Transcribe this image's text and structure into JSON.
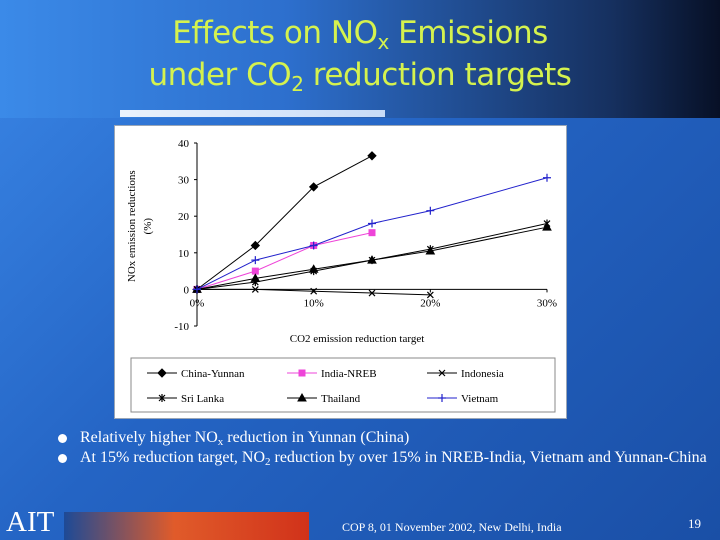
{
  "slide": {
    "title": {
      "line1_a": "Effects on NO",
      "line1_sub": "x",
      "line1_b": " Emissions",
      "line2_a": "under CO",
      "line2_sub": "2",
      "line2_b": " reduction targets"
    },
    "bullets": [
      {
        "a": "Relatively higher NO",
        "sub": "x",
        "b": " reduction in Yunnan (China)"
      },
      {
        "a": "At 15% reduction target, NO",
        "sub": "2",
        "b": " reduction by over 15% in NREB-India, Vietnam and Yunnan-China"
      }
    ],
    "logo_text": "AIT",
    "footer": "COP 8, 01 November 2002, New Delhi, India",
    "page_number": "19"
  },
  "chart_data": {
    "type": "line",
    "ylabel_line1": "NOx emission reductions",
    "ylabel_line2": "(%)",
    "xlabel": "CO2 emission reduction target",
    "ylim": [
      -10,
      40
    ],
    "yticks": [
      -10,
      0,
      10,
      20,
      30,
      40
    ],
    "xlim": [
      0,
      30
    ],
    "xticks": [
      {
        "value": 0,
        "label": "0%"
      },
      {
        "value": 10,
        "label": "10%"
      },
      {
        "value": 20,
        "label": "20%"
      },
      {
        "value": 30,
        "label": "30%"
      }
    ],
    "grid": false,
    "legend_position": "bottom",
    "series": [
      {
        "name": "China-Yunnan",
        "color": "#000000",
        "marker": "diamond",
        "x": [
          0,
          5,
          10,
          15
        ],
        "y": [
          0,
          12,
          28,
          36.5
        ]
      },
      {
        "name": "India-NREB",
        "color": "#ee44d8",
        "marker": "square",
        "x": [
          0,
          5,
          10,
          15
        ],
        "y": [
          0,
          5,
          12,
          15.5
        ]
      },
      {
        "name": "Indonesia",
        "color": "#000000",
        "marker": "x",
        "x": [
          0,
          5,
          10,
          15,
          20
        ],
        "y": [
          0,
          0,
          -0.5,
          -1,
          -1.5
        ]
      },
      {
        "name": "Sri Lanka",
        "color": "#000000",
        "marker": "star",
        "x": [
          0,
          5,
          10,
          15,
          20,
          30
        ],
        "y": [
          0,
          2,
          5,
          8,
          11,
          18
        ]
      },
      {
        "name": "Thailand",
        "color": "#000000",
        "marker": "triangle",
        "x": [
          0,
          5,
          10,
          15,
          20,
          30
        ],
        "y": [
          0,
          3,
          5.5,
          8,
          10.5,
          17
        ]
      },
      {
        "name": "Vietnam",
        "color": "#2222cc",
        "marker": "plus",
        "x": [
          0,
          5,
          10,
          15,
          20,
          30
        ],
        "y": [
          0,
          8,
          12,
          18,
          21.5,
          30.5
        ]
      }
    ]
  }
}
